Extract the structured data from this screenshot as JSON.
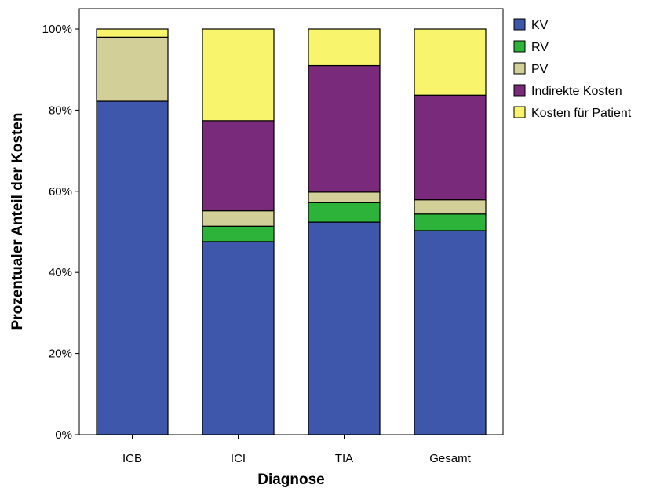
{
  "chart_data": {
    "type": "bar",
    "stacked": true,
    "normalized_percent": true,
    "title": "",
    "xlabel": "Diagnose",
    "ylabel": "Prozentualer Anteil der Kosten",
    "ylim": [
      0,
      100
    ],
    "y_ticks": [
      "0%",
      "20%",
      "40%",
      "60%",
      "80%",
      "100%"
    ],
    "categories": [
      "ICB",
      "ICI",
      "TIA",
      "Gesamt"
    ],
    "grid": false,
    "legend_position": "right",
    "series": [
      {
        "name": "KV",
        "color": "#3f57ab",
        "values": [
          82.2,
          47.6,
          52.4,
          50.3
        ]
      },
      {
        "name": "RV",
        "color": "#2eb33a",
        "values": [
          0.0,
          3.8,
          4.8,
          4.1
        ]
      },
      {
        "name": "PV",
        "color": "#d3cf99",
        "values": [
          15.8,
          3.8,
          2.6,
          3.5
        ]
      },
      {
        "name": "Indirekte Kosten",
        "color": "#7a2a7a",
        "values": [
          0.0,
          22.2,
          31.2,
          25.8
        ]
      },
      {
        "name": "Kosten für Patient",
        "color": "#f8f56d",
        "values": [
          2.0,
          22.6,
          9.0,
          16.3
        ]
      }
    ]
  }
}
